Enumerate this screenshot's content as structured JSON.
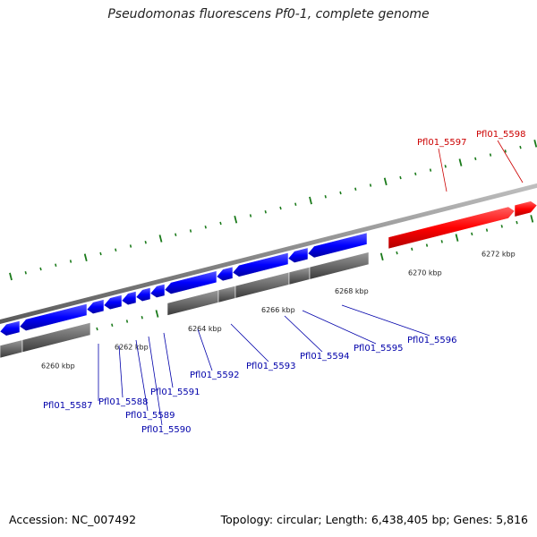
{
  "title": "Pseudomonas fluorescens Pf0-1, complete genome",
  "footer": {
    "accession": "Accession: NC_007492",
    "summary": "Topology: circular; Length: 6,438,405 bp; Genes: 5,816"
  },
  "colors": {
    "plus_strand_gene": "#ff0000",
    "minus_strand_gene": "#0000ff",
    "gene_block": "#666666",
    "backbone": "#888888",
    "tick": "#1a7a1a",
    "plus_label": "#cc0000",
    "minus_label": "#0000aa"
  },
  "scale_labels": [
    "6260 kbp",
    "6262 kbp",
    "6264 kbp",
    "6266 kbp",
    "6268 kbp",
    "6270 kbp",
    "6272 kbp"
  ],
  "genes": [
    {
      "name": "Pfl01_5587",
      "strand": "minus"
    },
    {
      "name": "Pfl01_5588",
      "strand": "minus"
    },
    {
      "name": "Pfl01_5589",
      "strand": "minus"
    },
    {
      "name": "Pfl01_5590",
      "strand": "minus"
    },
    {
      "name": "Pfl01_5591",
      "strand": "minus"
    },
    {
      "name": "Pfl01_5592",
      "strand": "minus"
    },
    {
      "name": "Pfl01_5593",
      "strand": "minus"
    },
    {
      "name": "Pfl01_5594",
      "strand": "minus"
    },
    {
      "name": "Pfl01_5595",
      "strand": "minus"
    },
    {
      "name": "Pfl01_5596",
      "strand": "minus"
    },
    {
      "name": "Pfl01_5597",
      "strand": "plus"
    },
    {
      "name": "Pfl01_5598",
      "strand": "plus"
    }
  ]
}
